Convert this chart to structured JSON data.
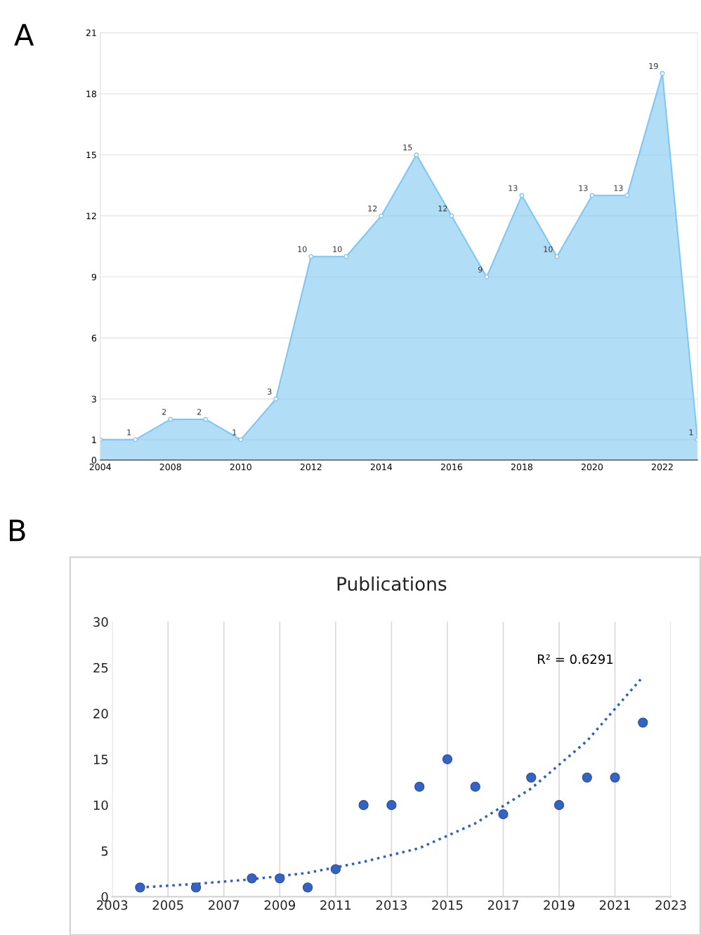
{
  "chart_data": [
    {
      "type": "area",
      "annotations": [
        "A"
      ],
      "categories": [
        "2004",
        null,
        "2008",
        null,
        "2010",
        null,
        "2012",
        null,
        "2014",
        null,
        "2016",
        null,
        "2018",
        null,
        "2020",
        null,
        "2022",
        null
      ],
      "values": [
        1,
        1,
        2,
        2,
        1,
        3,
        10,
        10,
        12,
        15,
        12,
        9,
        13,
        10,
        13,
        13,
        19,
        1
      ],
      "color": "#7fc6f2",
      "ylim": [
        0,
        21
      ],
      "yticks": [
        0,
        1,
        3,
        6,
        9,
        12,
        15,
        18,
        21
      ],
      "value_labels": [
        null,
        "1",
        "2",
        "2",
        "1",
        "3",
        "10",
        "10",
        "12",
        "15",
        "12",
        "9",
        "13",
        "10",
        "13",
        "13",
        "19",
        "1"
      ],
      "grid": "y",
      "marker": "circle"
    },
    {
      "type": "scatter",
      "title": "Publications",
      "annotations": [
        "B",
        "R² = 0.6291"
      ],
      "series": [
        {
          "type": "scatter",
          "marker": "circle",
          "color": "#3563c2",
          "x": [
            2004,
            2006,
            2008,
            2009,
            2010,
            2011,
            2012,
            2013,
            2014,
            2015,
            2016,
            2017,
            2018,
            2019,
            2020,
            2021,
            2022
          ],
          "values": [
            1,
            1,
            2,
            2,
            1,
            3,
            10,
            10,
            12,
            15,
            12,
            9,
            13,
            10,
            13,
            13,
            19
          ]
        },
        {
          "type": "line",
          "color": "#2f5fbf",
          "line_style": "dotted",
          "x": [
            2004,
            2006,
            2008,
            2010,
            2012,
            2014,
            2016,
            2018,
            2020,
            2022
          ],
          "values": [
            1.0,
            1.4,
            1.9,
            2.6,
            3.8,
            5.3,
            8,
            11.8,
            17,
            24
          ]
        }
      ],
      "xlim": [
        2003,
        2023
      ],
      "xticks": [
        2003,
        2005,
        2007,
        2009,
        2011,
        2013,
        2015,
        2017,
        2019,
        2021,
        2023
      ],
      "ylim": [
        0,
        30
      ],
      "yticks": [
        0,
        5,
        10,
        15,
        20,
        25,
        30
      ],
      "grid": "x"
    }
  ]
}
